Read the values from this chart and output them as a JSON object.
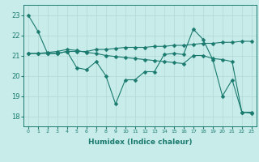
{
  "xlabel": "Humidex (Indice chaleur)",
  "bg_color": "#c8ecea",
  "line_color": "#1a7a6e",
  "grid_color": "#b0d8d4",
  "xlim": [
    -0.5,
    23.5
  ],
  "ylim": [
    17.5,
    23.5
  ],
  "yticks": [
    18,
    19,
    20,
    21,
    22,
    23
  ],
  "xticks": [
    0,
    1,
    2,
    3,
    4,
    5,
    6,
    7,
    8,
    9,
    10,
    11,
    12,
    13,
    14,
    15,
    16,
    17,
    18,
    19,
    20,
    21,
    22,
    23
  ],
  "series": [
    [
      23.0,
      22.2,
      21.1,
      21.1,
      21.2,
      20.4,
      20.3,
      20.7,
      20.0,
      18.6,
      19.8,
      19.8,
      20.2,
      20.2,
      21.05,
      21.1,
      21.05,
      22.3,
      21.8,
      20.8,
      19.0,
      19.8,
      18.2,
      18.2
    ],
    [
      21.1,
      21.1,
      21.1,
      21.1,
      21.2,
      21.2,
      21.2,
      21.3,
      21.3,
      21.35,
      21.4,
      21.4,
      21.4,
      21.45,
      21.45,
      21.5,
      21.5,
      21.55,
      21.6,
      21.6,
      21.65,
      21.65,
      21.7,
      21.7
    ],
    [
      21.1,
      21.1,
      21.15,
      21.2,
      21.3,
      21.25,
      21.15,
      21.1,
      21.0,
      20.95,
      20.9,
      20.85,
      20.8,
      20.75,
      20.7,
      20.65,
      20.6,
      21.0,
      21.0,
      20.85,
      20.8,
      20.7,
      18.2,
      18.15
    ]
  ],
  "marker": "D",
  "marker_size": 2.5
}
